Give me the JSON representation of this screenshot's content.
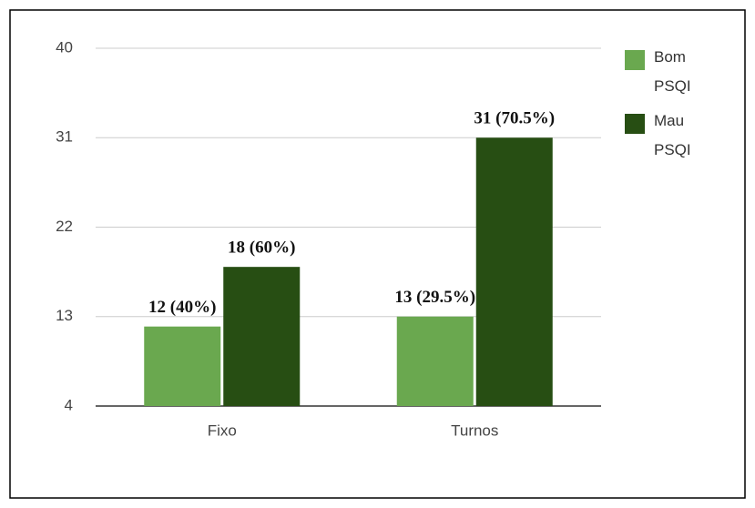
{
  "chart_data": {
    "type": "bar",
    "categories": [
      "Fixo",
      "Turnos"
    ],
    "series": [
      {
        "name": "Bom PSQI",
        "color": "#6aa84f",
        "values": [
          12,
          13
        ],
        "value_labels": [
          "12 (40%)",
          "13 (29.5%)"
        ]
      },
      {
        "name": "Mau PSQI",
        "color": "#274e13",
        "values": [
          18,
          31
        ],
        "value_labels": [
          "18 (60%)",
          "31 (70.5%)"
        ]
      }
    ],
    "ylim": [
      4,
      40
    ],
    "yticks": [
      4,
      13,
      22,
      31,
      40
    ],
    "grid": true,
    "legend": "right"
  }
}
